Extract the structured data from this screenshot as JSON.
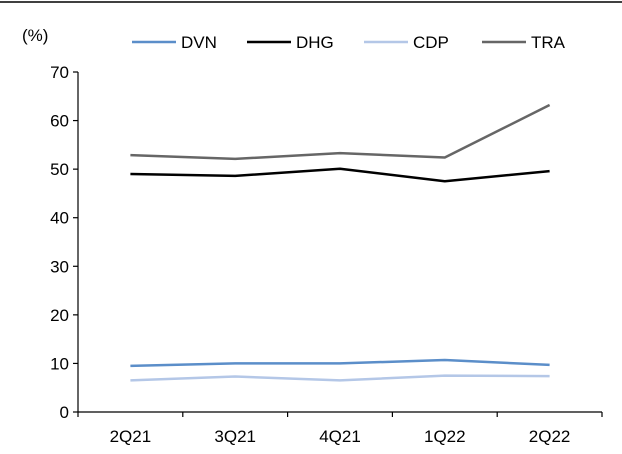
{
  "chart_data": {
    "type": "line",
    "ylabel": "(%)",
    "categories": [
      "2Q21",
      "3Q21",
      "4Q21",
      "1Q22",
      "2Q22"
    ],
    "ylim": [
      0,
      70
    ],
    "yticks": [
      0,
      10,
      20,
      30,
      40,
      50,
      60,
      70
    ],
    "grid": false,
    "legend_position": "top",
    "series": [
      {
        "name": "DVN",
        "color": "#5b8ec9",
        "values": [
          9.5,
          10.0,
          10.0,
          10.7,
          9.7
        ]
      },
      {
        "name": "DHG",
        "color": "#000000",
        "values": [
          49.0,
          48.6,
          50.1,
          47.5,
          49.6
        ]
      },
      {
        "name": "CDP",
        "color": "#b4c7e7",
        "values": [
          6.5,
          7.3,
          6.5,
          7.5,
          7.4
        ]
      },
      {
        "name": "TRA",
        "color": "#666666",
        "values": [
          52.9,
          52.1,
          53.3,
          52.4,
          63.2
        ]
      }
    ]
  }
}
